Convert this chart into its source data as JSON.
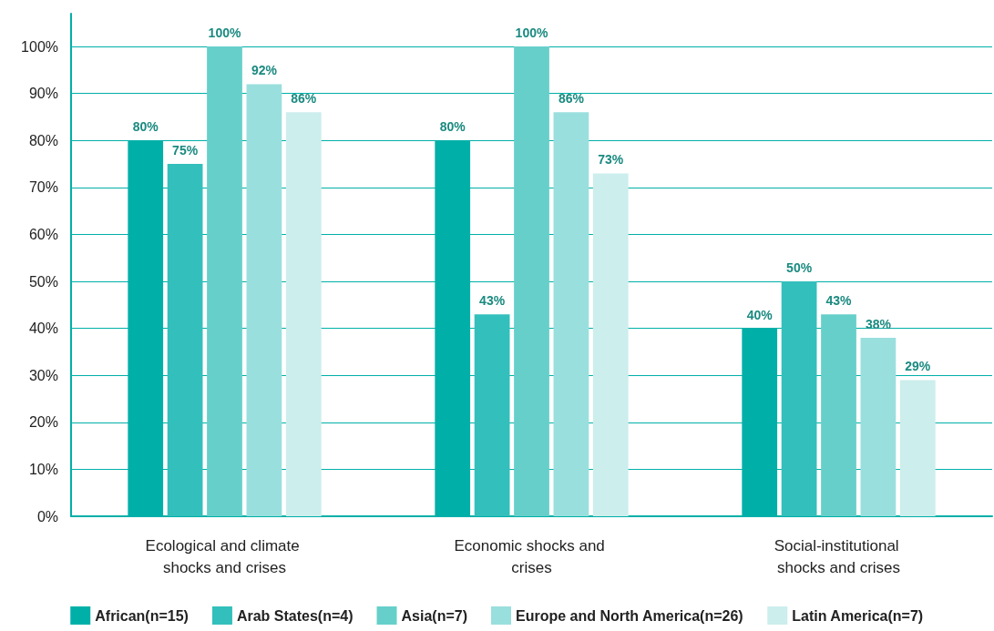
{
  "chart_data": {
    "type": "bar",
    "categories": [
      "Ecological and climate shocks and crises",
      "Economic shocks and crises",
      "Social-institutional shocks and crises"
    ],
    "series": [
      {
        "name": "African(n=15)",
        "color": "#00b0a8",
        "values": [
          80,
          80,
          40
        ],
        "value_labels": [
          "80%",
          "80%",
          "40%"
        ]
      },
      {
        "name": "Arab States(n=4)",
        "color": "#33bfbb",
        "values": [
          75,
          43,
          50
        ],
        "value_labels": [
          "75%",
          "43%",
          "50%"
        ]
      },
      {
        "name": "Asia(n=7)",
        "color": "#66cfca",
        "values": [
          100,
          100,
          43
        ],
        "value_labels": [
          "100%",
          "100%",
          "43%"
        ]
      },
      {
        "name": "Europe and North America(n=26)",
        "color": "#99dfdd",
        "values": [
          92,
          86,
          38
        ],
        "value_labels": [
          "92%",
          "86%",
          "38%"
        ]
      },
      {
        "name": "Latin America(n=7)",
        "color": "#cceeec",
        "values": [
          86,
          73,
          29
        ],
        "value_labels": [
          "86%",
          "73%",
          "29%"
        ]
      }
    ],
    "ylim": [
      0,
      107
    ],
    "yticks": [
      {
        "value": 0,
        "label": "0%"
      },
      {
        "value": 10,
        "label": "10%"
      },
      {
        "value": 20,
        "label": "20%"
      },
      {
        "value": 30,
        "label": "30%"
      },
      {
        "value": 40,
        "label": "40%"
      },
      {
        "value": 50,
        "label": "50%"
      },
      {
        "value": 60,
        "label": "60%"
      },
      {
        "value": 70,
        "label": "70%"
      },
      {
        "value": 80,
        "label": "80%"
      },
      {
        "value": 90,
        "label": "90%"
      },
      {
        "value": 100,
        "label": "100%"
      }
    ],
    "grid": "y",
    "legend": "bottom"
  }
}
